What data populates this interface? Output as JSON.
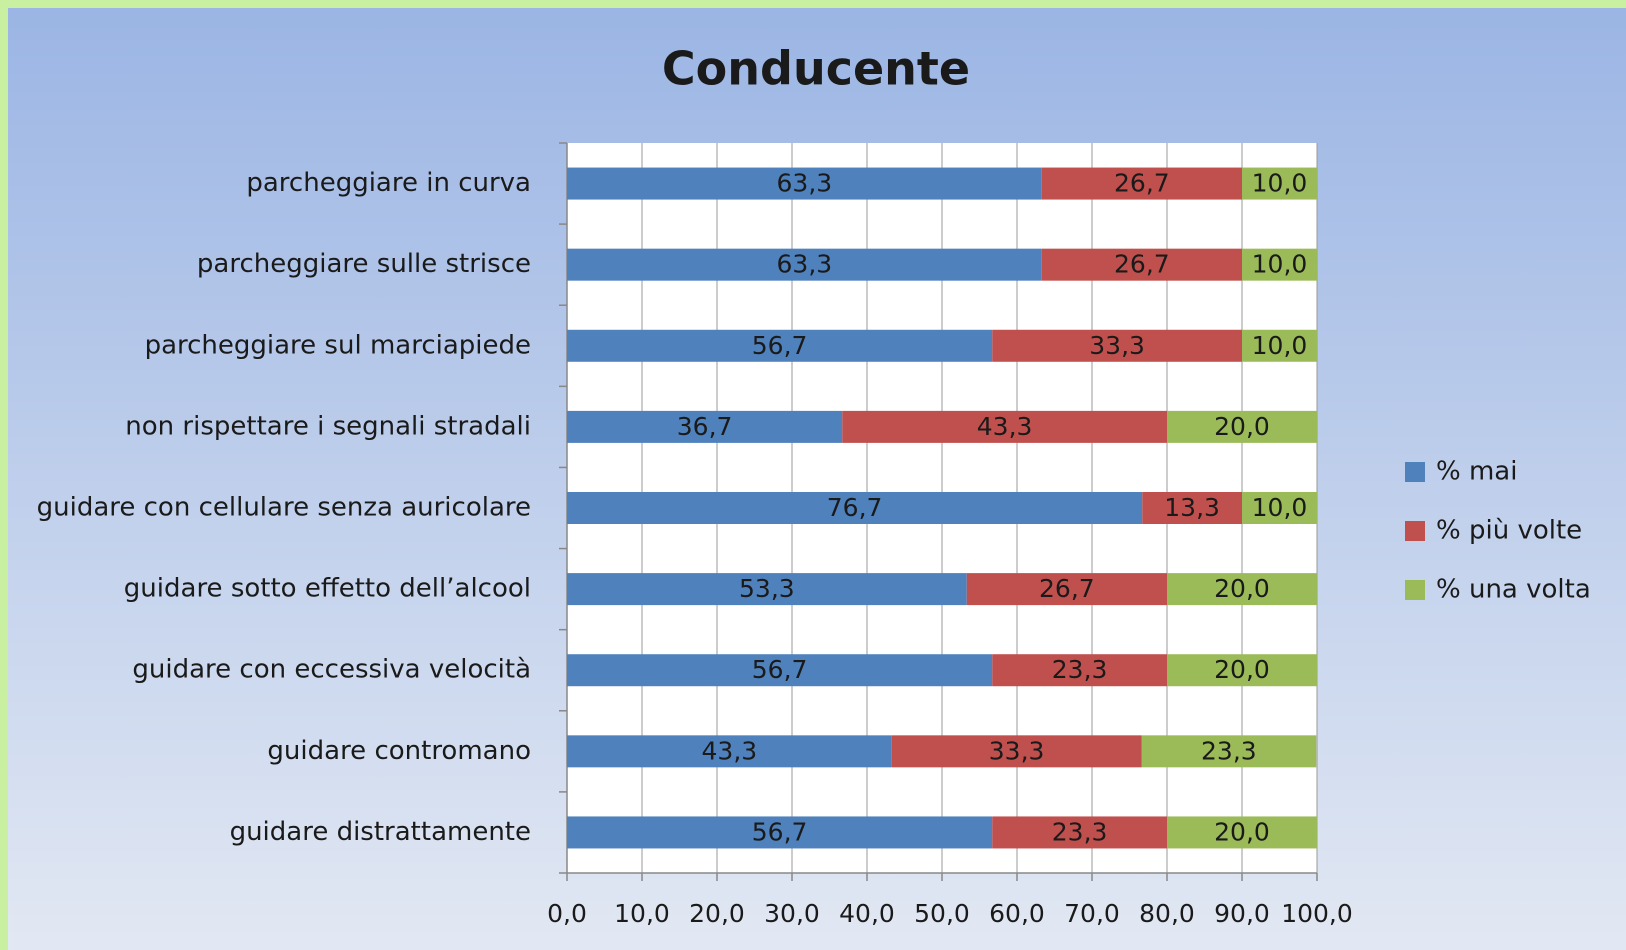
{
  "chart_data": {
    "type": "stacked_barh",
    "title": "Conducente",
    "categories": [
      "parcheggiare in curva",
      "parcheggiare sulle strisce",
      "parcheggiare sul marciapiede",
      "non rispettare i segnali stradali",
      "guidare con cellulare senza auricolare",
      "guidare sotto effetto dell’alcool",
      "guidare con eccessiva velocità",
      "guidare contromano",
      "guidare distrattamente"
    ],
    "series": [
      {
        "name": "% mai",
        "color": "#4f81bd",
        "values": [
          63.3,
          63.3,
          56.7,
          36.7,
          76.7,
          53.3,
          56.7,
          43.3,
          56.7
        ],
        "value_labels": [
          "63,3",
          "63,3",
          "56,7",
          "36,7",
          "76,7",
          "53,3",
          "56,7",
          "43,3",
          "56,7"
        ]
      },
      {
        "name": "% più volte",
        "color": "#c0504d",
        "values": [
          26.7,
          26.7,
          33.3,
          43.3,
          13.3,
          26.7,
          23.3,
          33.3,
          23.3
        ],
        "value_labels": [
          "26,7",
          "26,7",
          "33,3",
          "43,3",
          "13,3",
          "26,7",
          "23,3",
          "33,3",
          "23,3"
        ]
      },
      {
        "name": "% una volta",
        "color": "#9bbb59",
        "values": [
          10.0,
          10.0,
          10.0,
          20.0,
          10.0,
          20.0,
          20.0,
          23.3,
          20.0
        ],
        "value_labels": [
          "10,0",
          "10,0",
          "10,0",
          "20,0",
          "10,0",
          "20,0",
          "20,0",
          "23,3",
          "20,0"
        ]
      }
    ],
    "xlim": [
      0,
      100
    ],
    "xticks": [
      {
        "value": 0,
        "label": "0,0"
      },
      {
        "value": 10,
        "label": "10,0"
      },
      {
        "value": 20,
        "label": "20,0"
      },
      {
        "value": 30,
        "label": "30,0"
      },
      {
        "value": 40,
        "label": "40,0"
      },
      {
        "value": 50,
        "label": "50,0"
      },
      {
        "value": 60,
        "label": "60,0"
      },
      {
        "value": 70,
        "label": "70,0"
      },
      {
        "value": 80,
        "label": "80,0"
      },
      {
        "value": 90,
        "label": "90,0"
      },
      {
        "value": 100,
        "label": "100,0"
      }
    ],
    "grid": true,
    "legend": "right"
  }
}
